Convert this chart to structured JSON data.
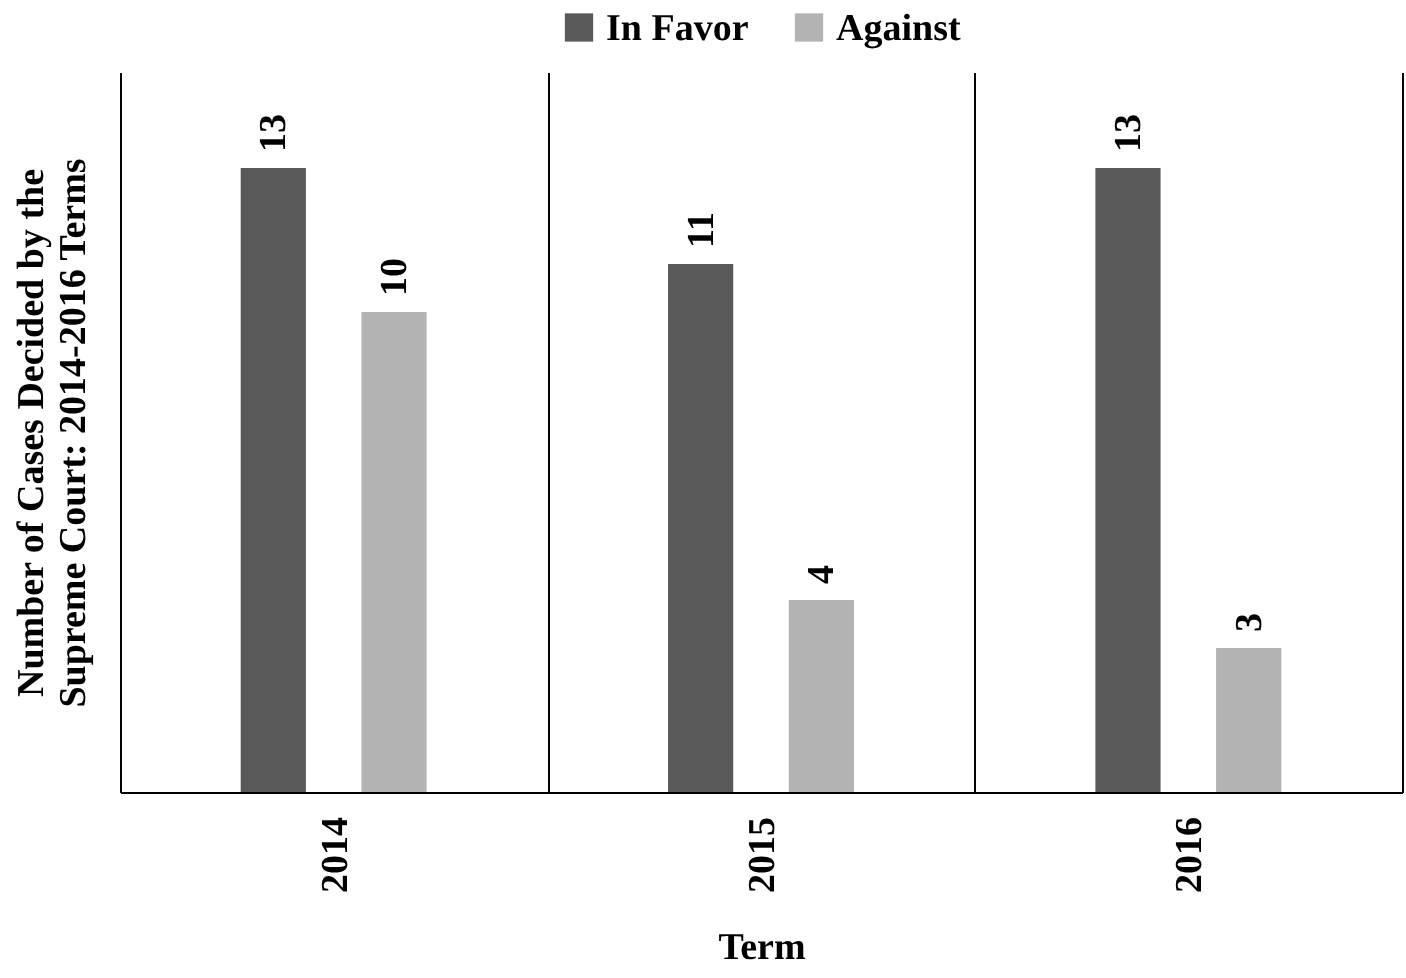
{
  "chart_data": {
    "type": "bar",
    "xlabel": "Term",
    "ylabel": "Number of Cases Decided by the\nSupreme Court: 2014-2016 Terms",
    "categories": [
      "2014",
      "2015",
      "2016"
    ],
    "series": [
      {
        "name": "In Favor",
        "color": "#595959",
        "values": [
          13,
          11,
          13
        ]
      },
      {
        "name": "Against",
        "color": "#b3b3b3",
        "values": [
          10,
          4,
          3
        ]
      }
    ],
    "ylim": [
      0,
      15
    ],
    "data_labels": true,
    "legend": "top",
    "grid": "x",
    "tick_labels": "x"
  }
}
